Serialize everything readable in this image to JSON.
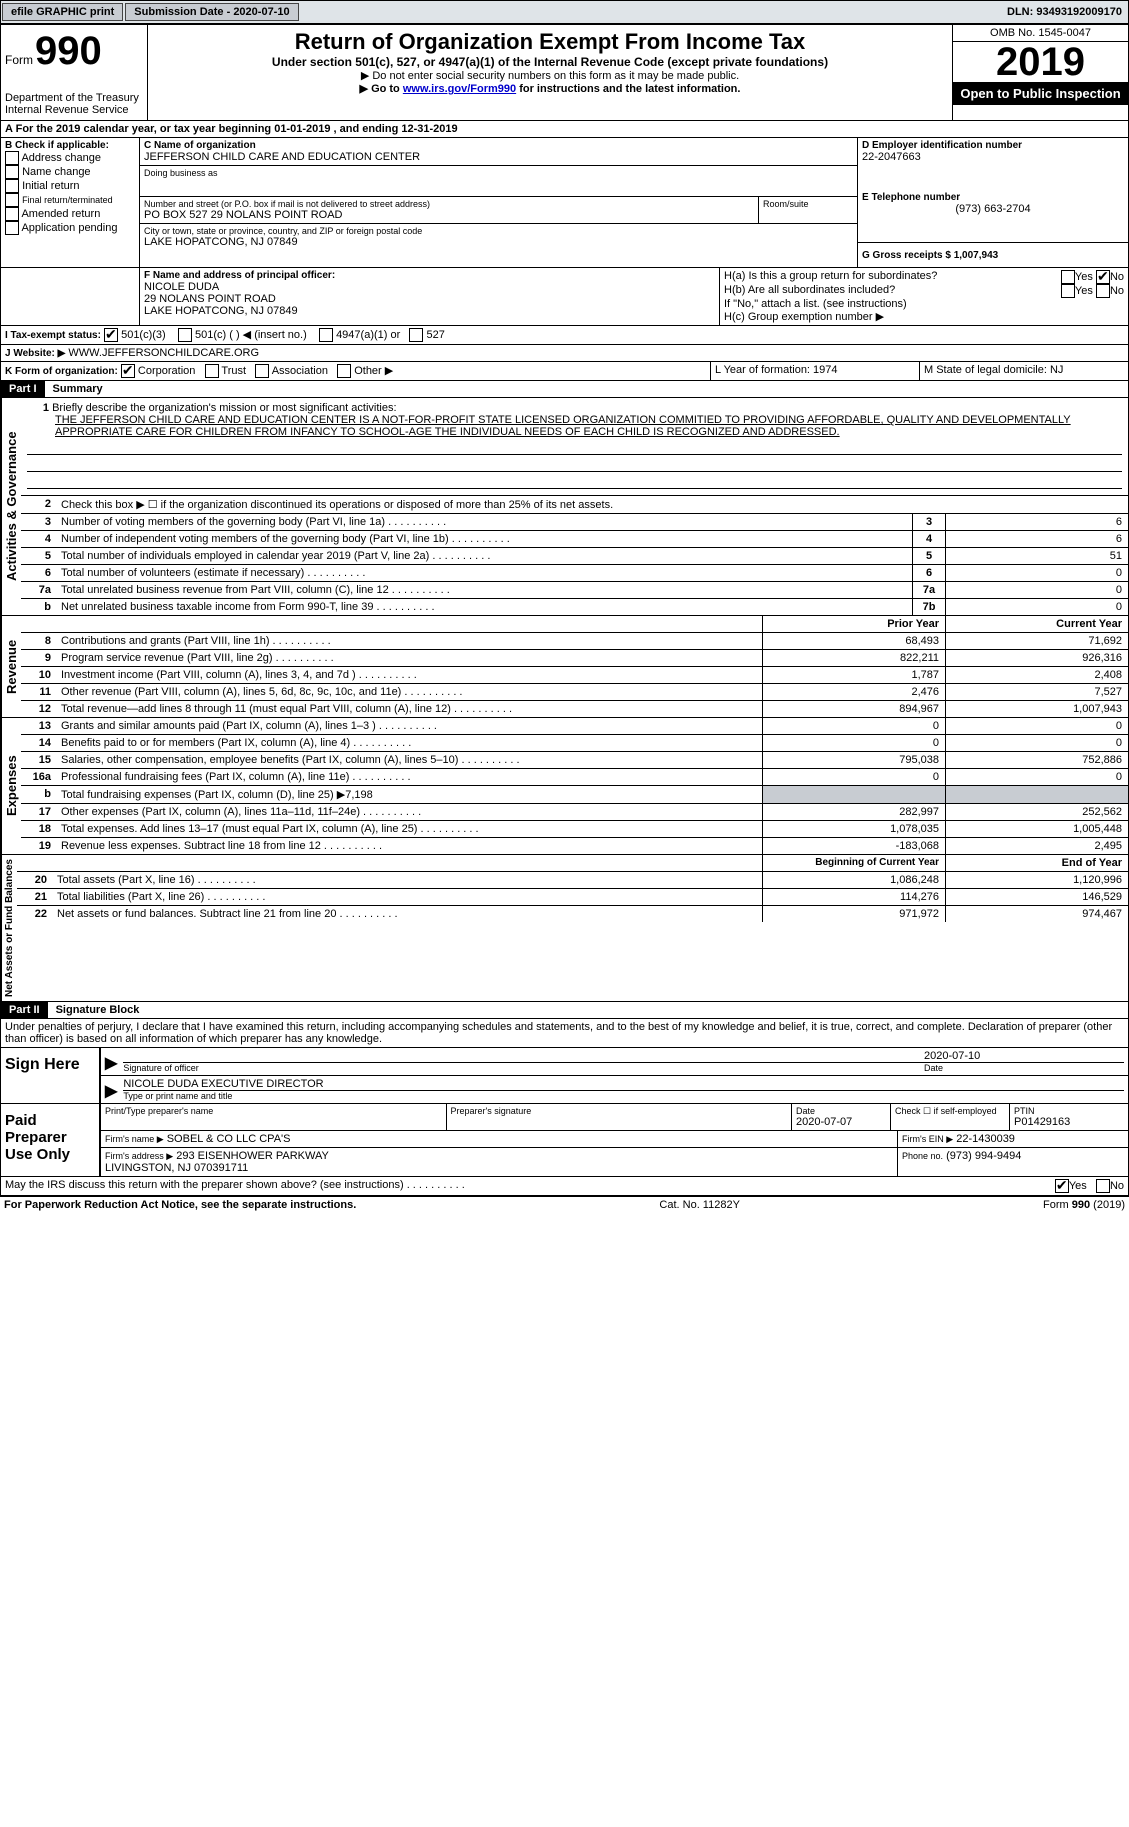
{
  "topbar": {
    "efile": "efile GRAPHIC print",
    "submission_label": "Submission Date - 2020-07-10",
    "dln_label": "DLN: 93493192009170"
  },
  "header": {
    "form_word": "Form",
    "form_number": "990",
    "dept": "Department of the Treasury\nInternal Revenue Service",
    "title": "Return of Organization Exempt From Income Tax",
    "subtitle": "Under section 501(c), 527, or 4947(a)(1) of the Internal Revenue Code (except private foundations)",
    "note1": "▶ Do not enter social security numbers on this form as it may be made public.",
    "note2_prefix": "▶ Go to ",
    "note2_link": "www.irs.gov/Form990",
    "note2_suffix": " for instructions and the latest information.",
    "omb": "OMB No. 1545-0047",
    "year": "2019",
    "inspection": "Open to Public Inspection"
  },
  "period": {
    "text": "For the 2019 calendar year, or tax year beginning 01-01-2019   , and ending 12-31-2019"
  },
  "boxB": {
    "label": "B Check if applicable:",
    "opts": [
      "Address change",
      "Name change",
      "Initial return",
      "Final return/terminated",
      "Amended return",
      "Application pending"
    ]
  },
  "boxC": {
    "label": "C Name of organization",
    "name": "JEFFERSON CHILD CARE AND EDUCATION CENTER",
    "dba_label": "Doing business as",
    "street_label": "Number and street (or P.O. box if mail is not delivered to street address)",
    "street": "PO BOX 527 29 NOLANS POINT ROAD",
    "room_label": "Room/suite",
    "city_label": "City or town, state or province, country, and ZIP or foreign postal code",
    "city": "LAKE HOPATCONG, NJ  07849"
  },
  "boxD": {
    "label": "D Employer identification number",
    "value": "22-2047663"
  },
  "boxE": {
    "label": "E Telephone number",
    "value": "(973) 663-2704"
  },
  "boxG": {
    "label": "G Gross receipts $ 1,007,943"
  },
  "boxF": {
    "label": "F Name and address of principal officer:",
    "name": "NICOLE DUDA",
    "addr1": "29 NOLANS POINT ROAD",
    "addr2": "LAKE HOPATCONG, NJ  07849"
  },
  "boxH": {
    "a": "H(a)  Is this a group return for subordinates?",
    "b": "H(b)  Are all subordinates included?",
    "note": "If \"No,\" attach a list. (see instructions)",
    "c": "H(c)  Group exemption number ▶"
  },
  "boxI": {
    "label": "I   Tax-exempt status:",
    "o1": "501(c)(3)",
    "o2": "501(c) (  ) ◀ (insert no.)",
    "o3": "4947(a)(1) or",
    "o4": "527"
  },
  "boxJ": {
    "label": "J   Website: ▶",
    "value": "WWW.JEFFERSONCHILDCARE.ORG"
  },
  "boxK": {
    "label": "K Form of organization:",
    "o1": "Corporation",
    "o2": "Trust",
    "o3": "Association",
    "o4": "Other ▶"
  },
  "boxL": {
    "label": "L Year of formation: 1974"
  },
  "boxM": {
    "label": "M State of legal domicile: NJ"
  },
  "part1": {
    "tag": "Part I",
    "title": "Summary"
  },
  "summary": {
    "l1_label": "Briefly describe the organization's mission or most significant activities:",
    "l1_text": "THE JEFFERSON CHILD CARE AND EDUCATION CENTER IS A NOT-FOR-PROFIT STATE LICENSED ORGANIZATION COMMITIED TO PROVIDING AFFORDABLE, QUALITY AND DEVELOPMENTALLY APPROPRIATE CARE FOR CHILDREN FROM INFANCY TO SCHOOL-AGE THE INDIVIDUAL NEEDS OF EACH CHILD IS RECOGNIZED AND ADDRESSED.",
    "l2": "Check this box ▶ ☐  if the organization discontinued its operations or disposed of more than 25% of its net assets.",
    "l3": "Number of voting members of the governing body (Part VI, line 1a)",
    "l3v": "6",
    "l4": "Number of independent voting members of the governing body (Part VI, line 1b)",
    "l4v": "6",
    "l5": "Total number of individuals employed in calendar year 2019 (Part V, line 2a)",
    "l5v": "51",
    "l6": "Total number of volunteers (estimate if necessary)",
    "l6v": "0",
    "l7a": "Total unrelated business revenue from Part VIII, column (C), line 12",
    "l7av": "0",
    "l7b": "Net unrelated business taxable income from Form 990-T, line 39",
    "l7bv": "0",
    "prior": "Prior Year",
    "current": "Current Year"
  },
  "revenue": [
    {
      "n": "8",
      "d": "Contributions and grants (Part VIII, line 1h)",
      "p": "68,493",
      "c": "71,692"
    },
    {
      "n": "9",
      "d": "Program service revenue (Part VIII, line 2g)",
      "p": "822,211",
      "c": "926,316"
    },
    {
      "n": "10",
      "d": "Investment income (Part VIII, column (A), lines 3, 4, and 7d )",
      "p": "1,787",
      "c": "2,408"
    },
    {
      "n": "11",
      "d": "Other revenue (Part VIII, column (A), lines 5, 6d, 8c, 9c, 10c, and 11e)",
      "p": "2,476",
      "c": "7,527"
    },
    {
      "n": "12",
      "d": "Total revenue—add lines 8 through 11 (must equal Part VIII, column (A), line 12)",
      "p": "894,967",
      "c": "1,007,943"
    }
  ],
  "expenses": [
    {
      "n": "13",
      "d": "Grants and similar amounts paid (Part IX, column (A), lines 1–3 )",
      "p": "0",
      "c": "0"
    },
    {
      "n": "14",
      "d": "Benefits paid to or for members (Part IX, column (A), line 4)",
      "p": "0",
      "c": "0"
    },
    {
      "n": "15",
      "d": "Salaries, other compensation, employee benefits (Part IX, column (A), lines 5–10)",
      "p": "795,038",
      "c": "752,886"
    },
    {
      "n": "16a",
      "d": "Professional fundraising fees (Part IX, column (A), line 11e)",
      "p": "0",
      "c": "0"
    },
    {
      "n": "b",
      "d": "Total fundraising expenses (Part IX, column (D), line 25) ▶7,198",
      "p": "",
      "c": "",
      "grey": true
    },
    {
      "n": "17",
      "d": "Other expenses (Part IX, column (A), lines 11a–11d, 11f–24e)",
      "p": "282,997",
      "c": "252,562"
    },
    {
      "n": "18",
      "d": "Total expenses. Add lines 13–17 (must equal Part IX, column (A), line 25)",
      "p": "1,078,035",
      "c": "1,005,448"
    },
    {
      "n": "19",
      "d": "Revenue less expenses. Subtract line 18 from line 12",
      "p": "-183,068",
      "c": "2,495"
    }
  ],
  "netassets_hdr": {
    "p": "Beginning of Current Year",
    "c": "End of Year"
  },
  "netassets": [
    {
      "n": "20",
      "d": "Total assets (Part X, line 16)",
      "p": "1,086,248",
      "c": "1,120,996"
    },
    {
      "n": "21",
      "d": "Total liabilities (Part X, line 26)",
      "p": "114,276",
      "c": "146,529"
    },
    {
      "n": "22",
      "d": "Net assets or fund balances. Subtract line 21 from line 20",
      "p": "971,972",
      "c": "974,467"
    }
  ],
  "vlabels": {
    "gov": "Activities & Governance",
    "rev": "Revenue",
    "exp": "Expenses",
    "net": "Net Assets or Fund Balances"
  },
  "part2": {
    "tag": "Part II",
    "title": "Signature Block"
  },
  "sig": {
    "perjury": "Under penalties of perjury, I declare that I have examined this return, including accompanying schedules and statements, and to the best of my knowledge and belief, it is true, correct, and complete. Declaration of preparer (other than officer) is based on all information of which preparer has any knowledge.",
    "sign_here": "Sign Here",
    "sig_of_officer": "Signature of officer",
    "date": "Date",
    "sig_date": "2020-07-10",
    "officer": "NICOLE DUDA  EXECUTIVE DIRECTOR",
    "type_name": "Type or print name and title",
    "paid": "Paid Preparer Use Only",
    "prep_name_label": "Print/Type preparer's name",
    "prep_sig_label": "Preparer's signature",
    "prep_date_label": "Date",
    "prep_date": "2020-07-07",
    "self_emp": "Check ☐ if self-employed",
    "ptin_label": "PTIN",
    "ptin": "P01429163",
    "firm_name_label": "Firm's name   ▶",
    "firm_name": "SOBEL & CO LLC CPA'S",
    "firm_ein_label": "Firm's EIN ▶",
    "firm_ein": "22-1430039",
    "firm_addr_label": "Firm's address ▶",
    "firm_addr": "293 EISENHOWER PARKWAY\nLIVINGSTON, NJ  070391711",
    "phone_label": "Phone no.",
    "phone": "(973) 994-9494",
    "discuss": "May the IRS discuss this return with the preparer shown above? (see instructions)"
  },
  "footer": {
    "left": "For Paperwork Reduction Act Notice, see the separate instructions.",
    "mid": "Cat. No. 11282Y",
    "right": "Form 990 (2019)"
  },
  "labels": {
    "yes": "Yes",
    "no": "No"
  }
}
